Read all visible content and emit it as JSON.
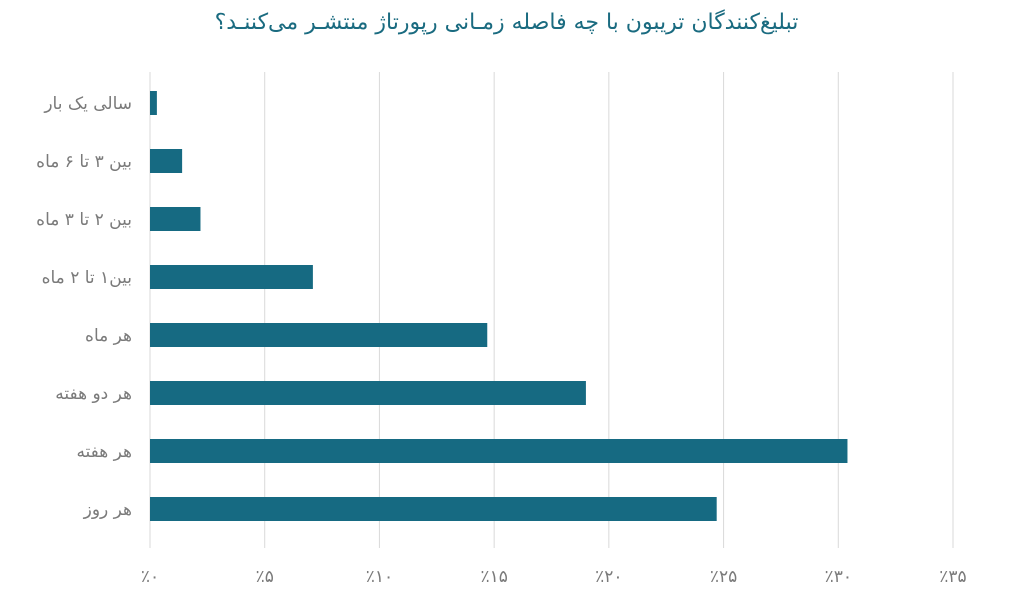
{
  "chart_data": {
    "type": "bar",
    "orientation": "horizontal",
    "title": "تبلیغ‌کنندگان تریبون با چه فاصله زمـانی رپورتاژ منتشـر می‌کننـد؟",
    "categories": [
      "سالی یک بار",
      "بین ۳ تا ۶ ماه",
      "بین ۲ تا ۳ ماه",
      "بین۱ تا ۲ ماه",
      "هر ماه",
      "هر دو هفته",
      "هر هفته",
      "هر روز"
    ],
    "values": [
      0.3,
      1.4,
      2.2,
      7.1,
      14.7,
      19.0,
      30.4,
      24.7
    ],
    "xlim": [
      0,
      35
    ],
    "x_ticks": [
      0,
      5,
      10,
      15,
      20,
      25,
      30,
      35
    ],
    "x_tick_labels": [
      "٪۰",
      "٪۵",
      "٪۱۰",
      "٪۱۵",
      "٪۲۰",
      "٪۲۵",
      "٪۳۰",
      "٪۳۵"
    ],
    "grid": true,
    "bar_color": "#166a82",
    "title_color": "#1a6b80"
  }
}
